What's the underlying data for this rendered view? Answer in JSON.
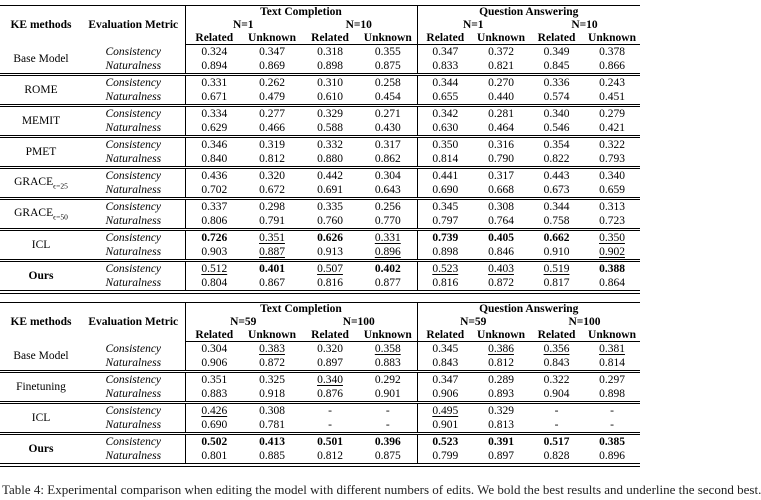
{
  "page_bg": "#ffffff",
  "text_color": "#000000",
  "rule_color": "#000000",
  "caption": "Table 4: Experimental comparison when editing the model with different numbers of edits. We bold the best results and underline the second best.",
  "tables": [
    {
      "name": "top",
      "header": {
        "ke_methods": "KE methods",
        "evaluation_metric": "Evaluation Metric",
        "group1": "Text Completion",
        "group2": "Question Answering",
        "n_first": "N=1",
        "n_second": "N=10",
        "related": "Related",
        "unknown": "Unknown"
      },
      "rows": [
        {
          "method": "Base Model",
          "bold": false,
          "sub": "",
          "metrics": [
            {
              "name": "Consistency",
              "values": [
                "0.324",
                "0.347",
                "0.318",
                "0.355",
                "0.347",
                "0.372",
                "0.349",
                "0.378"
              ]
            },
            {
              "name": "Naturalness",
              "values": [
                "0.894",
                "0.869",
                "0.898",
                "0.875",
                "0.833",
                "0.821",
                "0.845",
                "0.866"
              ]
            }
          ]
        },
        {
          "method": "ROME",
          "bold": false,
          "sub": "",
          "metrics": [
            {
              "name": "Consistency",
              "values": [
                "0.331",
                "0.262",
                "0.310",
                "0.258",
                "0.344",
                "0.270",
                "0.336",
                "0.243"
              ]
            },
            {
              "name": "Naturalness",
              "values": [
                "0.671",
                "0.479",
                "0.610",
                "0.454",
                "0.655",
                "0.440",
                "0.574",
                "0.451"
              ]
            }
          ]
        },
        {
          "method": "MEMIT",
          "bold": false,
          "sub": "",
          "metrics": [
            {
              "name": "Consistency",
              "values": [
                "0.334",
                "0.277",
                "0.329",
                "0.271",
                "0.342",
                "0.281",
                "0.340",
                "0.279"
              ]
            },
            {
              "name": "Naturalness",
              "values": [
                "0.629",
                "0.466",
                "0.588",
                "0.430",
                "0.630",
                "0.464",
                "0.546",
                "0.421"
              ]
            }
          ]
        },
        {
          "method": "PMET",
          "bold": false,
          "sub": "",
          "metrics": [
            {
              "name": "Consistency",
              "values": [
                "0.346",
                "0.319",
                "0.332",
                "0.317",
                "0.350",
                "0.316",
                "0.354",
                "0.322"
              ]
            },
            {
              "name": "Naturalness",
              "values": [
                "0.840",
                "0.812",
                "0.880",
                "0.862",
                "0.814",
                "0.790",
                "0.822",
                "0.793"
              ]
            }
          ]
        },
        {
          "method": "GRACE",
          "bold": false,
          "sub": "ϵ=25",
          "metrics": [
            {
              "name": "Consistency",
              "values": [
                "0.436",
                "0.320",
                "0.442",
                "0.304",
                "0.441",
                "0.317",
                "0.443",
                "0.340"
              ]
            },
            {
              "name": "Naturalness",
              "values": [
                "0.702",
                "0.672",
                "0.691",
                "0.643",
                "0.690",
                "0.668",
                "0.673",
                "0.659"
              ]
            }
          ]
        },
        {
          "method": "GRACE",
          "bold": false,
          "sub": "ϵ=50",
          "metrics": [
            {
              "name": "Consistency",
              "values": [
                "0.337",
                "0.298",
                "0.335",
                "0.256",
                "0.345",
                "0.308",
                "0.344",
                "0.313"
              ]
            },
            {
              "name": "Naturalness",
              "values": [
                "0.806",
                "0.791",
                "0.760",
                "0.770",
                "0.797",
                "0.764",
                "0.758",
                "0.723"
              ]
            }
          ]
        },
        {
          "method": "ICL",
          "bold": false,
          "sub": "",
          "metrics": [
            {
              "name": "Consistency",
              "values": [
                {
                  "v": "0.726",
                  "s": "bold"
                },
                {
                  "v": "0.351",
                  "s": "underline"
                },
                {
                  "v": "0.626",
                  "s": "bold"
                },
                {
                  "v": "0.331",
                  "s": "underline"
                },
                {
                  "v": "0.739",
                  "s": "bold"
                },
                {
                  "v": "0.405",
                  "s": "bold"
                },
                {
                  "v": "0.662",
                  "s": "bold"
                },
                {
                  "v": "0.350",
                  "s": "underline"
                }
              ]
            },
            {
              "name": "Naturalness",
              "values": [
                "0.903",
                {
                  "v": "0.887",
                  "s": "underline"
                },
                "0.913",
                {
                  "v": "0.896",
                  "s": "underline"
                },
                "0.898",
                "0.846",
                "0.910",
                {
                  "v": "0.902",
                  "s": "underline"
                }
              ]
            }
          ]
        },
        {
          "method": "Ours",
          "bold": true,
          "sub": "",
          "metrics": [
            {
              "name": "Consistency",
              "values": [
                {
                  "v": "0.512",
                  "s": "underline"
                },
                {
                  "v": "0.401",
                  "s": "bold"
                },
                {
                  "v": "0.507",
                  "s": "underline"
                },
                {
                  "v": "0.402",
                  "s": "bold"
                },
                {
                  "v": "0.523",
                  "s": "underline"
                },
                {
                  "v": "0.403",
                  "s": "underline"
                },
                {
                  "v": "0.519",
                  "s": "underline"
                },
                {
                  "v": "0.388",
                  "s": "bold"
                }
              ]
            },
            {
              "name": "Naturalness",
              "values": [
                "0.804",
                "0.867",
                "0.816",
                "0.877",
                "0.816",
                "0.872",
                "0.817",
                "0.864"
              ]
            }
          ]
        }
      ]
    },
    {
      "name": "bottom",
      "header": {
        "ke_methods": "KE methods",
        "evaluation_metric": "Evaluation Metric",
        "group1": "Text Completion",
        "group2": "Question Answering",
        "n_first": "N=59",
        "n_second": "N=100",
        "related": "Related",
        "unknown": "Unknown"
      },
      "rows": [
        {
          "method": "Base Model",
          "bold": false,
          "sub": "",
          "metrics": [
            {
              "name": "Consistency",
              "values": [
                "0.304",
                {
                  "v": "0.383",
                  "s": "underline"
                },
                "0.320",
                {
                  "v": "0.358",
                  "s": "underline"
                },
                "0.345",
                {
                  "v": "0.386",
                  "s": "underline"
                },
                {
                  "v": "0.356",
                  "s": "underline"
                },
                {
                  "v": "0.381",
                  "s": "underline"
                }
              ]
            },
            {
              "name": "Naturalness",
              "values": [
                "0.906",
                "0.872",
                "0.897",
                "0.883",
                "0.843",
                "0.812",
                "0.843",
                "0.814"
              ]
            }
          ]
        },
        {
          "method": "Finetuning",
          "bold": false,
          "sub": "",
          "metrics": [
            {
              "name": "Consistency",
              "values": [
                "0.351",
                "0.325",
                {
                  "v": "0.340",
                  "s": "underline"
                },
                "0.292",
                "0.347",
                "0.289",
                "0.322",
                "0.297"
              ]
            },
            {
              "name": "Naturalness",
              "values": [
                "0.883",
                "0.918",
                "0.876",
                "0.901",
                "0.906",
                "0.893",
                "0.904",
                "0.898"
              ]
            }
          ]
        },
        {
          "method": "ICL",
          "bold": false,
          "sub": "",
          "metrics": [
            {
              "name": "Consistency",
              "values": [
                {
                  "v": "0.426",
                  "s": "underline"
                },
                "0.308",
                "-",
                "-",
                {
                  "v": "0.495",
                  "s": "underline"
                },
                "0.329",
                "-",
                "-"
              ]
            },
            {
              "name": "Naturalness",
              "values": [
                "0.690",
                "0.781",
                "-",
                "-",
                "0.901",
                "0.813",
                "-",
                "-"
              ]
            }
          ]
        },
        {
          "method": "Ours",
          "bold": true,
          "sub": "",
          "metrics": [
            {
              "name": "Consistency",
              "values": [
                {
                  "v": "0.502",
                  "s": "bold"
                },
                {
                  "v": "0.413",
                  "s": "bold"
                },
                {
                  "v": "0.501",
                  "s": "bold"
                },
                {
                  "v": "0.396",
                  "s": "bold"
                },
                {
                  "v": "0.523",
                  "s": "bold"
                },
                {
                  "v": "0.391",
                  "s": "bold"
                },
                {
                  "v": "0.517",
                  "s": "bold"
                },
                {
                  "v": "0.385",
                  "s": "bold"
                }
              ]
            },
            {
              "name": "Naturalness",
              "values": [
                "0.801",
                "0.885",
                "0.812",
                "0.875",
                "0.799",
                "0.897",
                "0.828",
                "0.896"
              ]
            }
          ]
        }
      ]
    }
  ]
}
